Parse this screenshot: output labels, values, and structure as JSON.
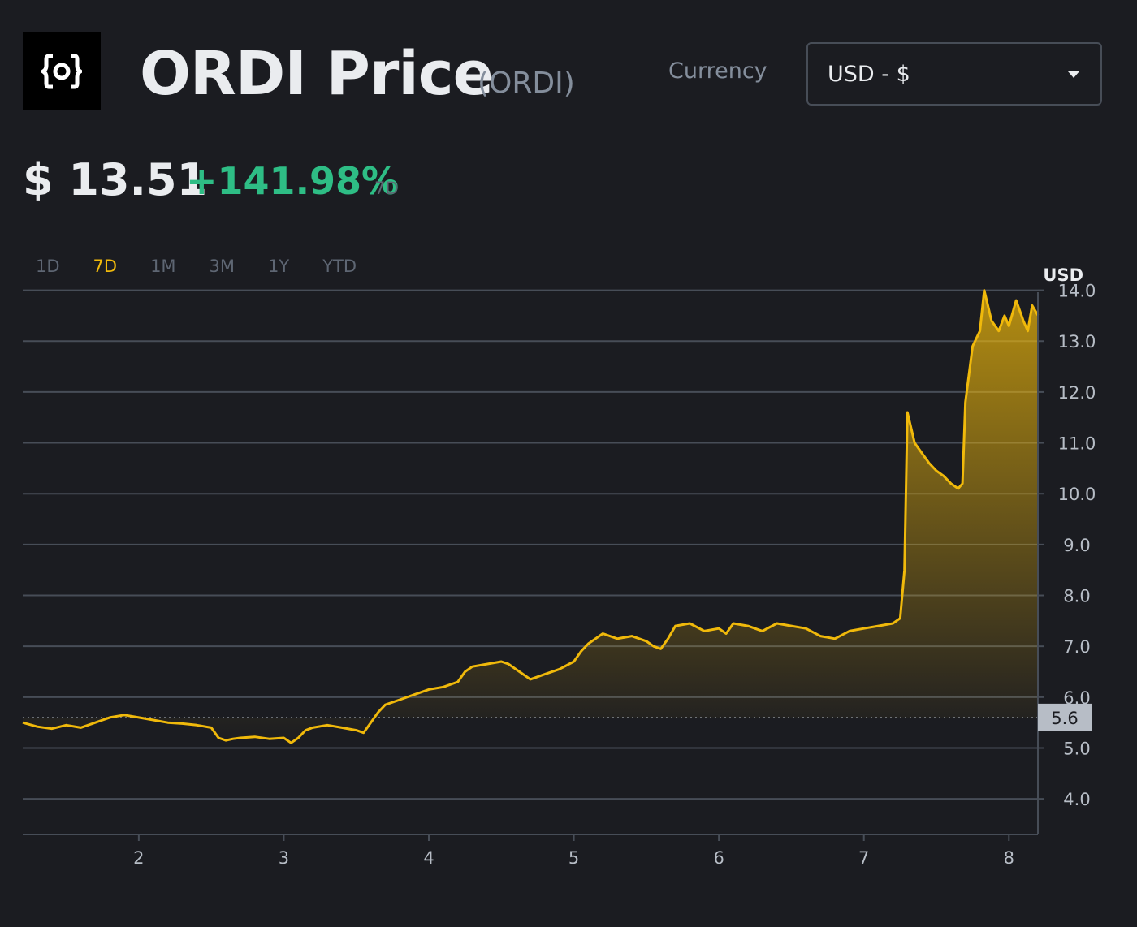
{
  "header": {
    "logo_icon": "ordi-logo-icon",
    "title": "ORDI Price",
    "ticker": "(ORDI)",
    "currency_label": "Currency",
    "currency_value": "USD - $"
  },
  "price": {
    "value": "$ 13.51",
    "change": "+141.98%",
    "period": "7D"
  },
  "tabs": [
    {
      "label": "1D",
      "active": false
    },
    {
      "label": "7D",
      "active": true
    },
    {
      "label": "1M",
      "active": false
    },
    {
      "label": "3M",
      "active": false
    },
    {
      "label": "1Y",
      "active": false
    },
    {
      "label": "YTD",
      "active": false
    }
  ],
  "colors": {
    "background": "#1b1c21",
    "line": "#f0b90b",
    "positive": "#2ebd85",
    "grid": "#474d57"
  },
  "chart_data": {
    "type": "area",
    "unit_label": "USD",
    "xlim": [
      1.2,
      8.2
    ],
    "ylim": [
      3.3,
      14.6
    ],
    "yticks": [
      4.0,
      5.0,
      6.0,
      7.0,
      8.0,
      9.0,
      10.0,
      11.0,
      12.0,
      13.0,
      14.0
    ],
    "ytick_labels": [
      "4.0",
      "5.0",
      "6.0",
      "7.0",
      "8.0",
      "9.0",
      "10.0",
      "11.0",
      "12.0",
      "13.0",
      "14.0"
    ],
    "xticks": [
      2,
      3,
      4,
      5,
      6,
      7,
      8
    ],
    "xtick_labels": [
      "2",
      "3",
      "4",
      "5",
      "6",
      "7",
      "8"
    ],
    "reference_value": 5.6,
    "reference_label": "5.6",
    "grid": true,
    "series": [
      {
        "x": [
          1.2,
          1.3,
          1.4,
          1.5,
          1.6,
          1.7,
          1.8,
          1.9,
          2.0,
          2.1,
          2.2,
          2.3,
          2.4,
          2.5,
          2.55,
          2.6,
          2.65,
          2.7,
          2.8,
          2.9,
          3.0,
          3.05,
          3.1,
          3.15,
          3.2,
          3.3,
          3.4,
          3.5,
          3.55,
          3.6,
          3.65,
          3.7,
          3.8,
          3.9,
          4.0,
          4.1,
          4.2,
          4.25,
          4.3,
          4.4,
          4.5,
          4.55,
          4.6,
          4.65,
          4.7,
          4.8,
          4.9,
          5.0,
          5.05,
          5.1,
          5.2,
          5.3,
          5.4,
          5.5,
          5.55,
          5.6,
          5.65,
          5.7,
          5.8,
          5.9,
          6.0,
          6.05,
          6.1,
          6.2,
          6.3,
          6.4,
          6.5,
          6.6,
          6.7,
          6.8,
          6.9,
          7.0,
          7.1,
          7.2,
          7.25,
          7.28,
          7.3,
          7.35,
          7.4,
          7.45,
          7.5,
          7.55,
          7.6,
          7.65,
          7.68,
          7.7,
          7.75,
          7.8,
          7.83,
          7.88,
          7.93,
          7.97,
          8.0,
          8.05,
          8.1,
          8.13,
          8.16,
          8.2
        ],
        "values": [
          5.5,
          5.42,
          5.38,
          5.45,
          5.4,
          5.5,
          5.6,
          5.65,
          5.6,
          5.55,
          5.5,
          5.48,
          5.45,
          5.4,
          5.2,
          5.15,
          5.18,
          5.2,
          5.22,
          5.18,
          5.2,
          5.1,
          5.2,
          5.35,
          5.4,
          5.45,
          5.4,
          5.35,
          5.3,
          5.5,
          5.7,
          5.85,
          5.95,
          6.05,
          6.15,
          6.2,
          6.3,
          6.5,
          6.6,
          6.65,
          6.7,
          6.65,
          6.55,
          6.45,
          6.35,
          6.45,
          6.55,
          6.7,
          6.9,
          7.05,
          7.25,
          7.15,
          7.2,
          7.1,
          7.0,
          6.95,
          7.15,
          7.4,
          7.45,
          7.3,
          7.35,
          7.25,
          7.45,
          7.4,
          7.3,
          7.45,
          7.4,
          7.35,
          7.2,
          7.15,
          7.3,
          7.35,
          7.4,
          7.45,
          7.55,
          8.5,
          11.6,
          11.0,
          10.8,
          10.6,
          10.45,
          10.35,
          10.2,
          10.1,
          10.2,
          11.8,
          12.9,
          13.2,
          14.0,
          13.4,
          13.2,
          13.5,
          13.3,
          13.8,
          13.4,
          13.2,
          13.7,
          13.51
        ]
      }
    ]
  }
}
